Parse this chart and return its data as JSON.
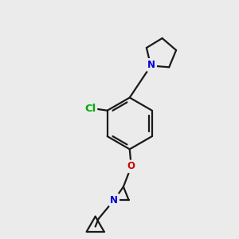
{
  "background_color": "#ebebeb",
  "bond_color": "#1a1a1a",
  "bond_width": 1.6,
  "atom_colors": {
    "N": "#0000dd",
    "O": "#cc0000",
    "Cl": "#00aa00",
    "C": "#1a1a1a"
  },
  "font_size_atom": 8.5,
  "fig_size": [
    3.0,
    3.0
  ],
  "dpi": 100
}
